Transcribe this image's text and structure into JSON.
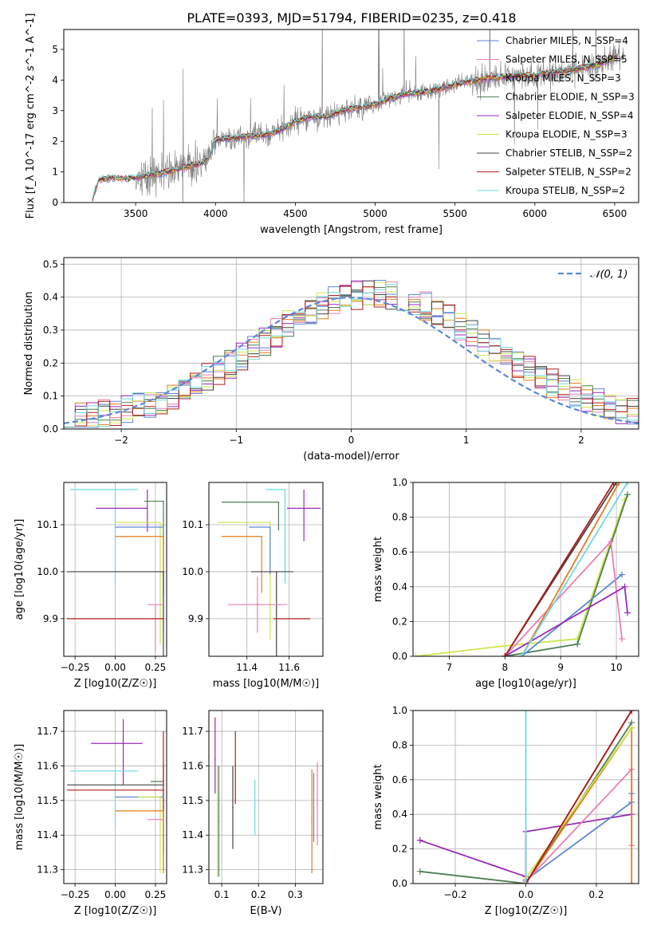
{
  "title": "PLATE=0393, MJD=51794, FIBERID=0235, z=0.418",
  "legend_labels": {
    "spectrum": [
      "Chabrier MILES, N_SSP=4",
      "Salpeter MILES, N_SSP=5",
      "Kroupa MILES, N_SSP=3",
      "Chabrier ELODIE, N_SSP=3",
      "Salpeter ELODIE, N_SSP=4",
      "Kroupa ELODIE, N_SSP=3",
      "Chabrier STELIB, N_SSP=2",
      "Salpeter STELIB, N_SSP=2",
      "Kroupa STELIB, N_SSP=2"
    ],
    "hist": [
      "𝒩(0, 1)"
    ]
  },
  "colors": {
    "Chabrier MILES": "#5b87d6",
    "Salpeter MILES": "#e87fb4",
    "Kroupa MILES": "#e57c1f",
    "Chabrier ELODIE": "#4e7e52",
    "Salpeter ELODIE": "#9a2ab8",
    "Kroupa ELODIE": "#cde54a",
    "Chabrier STELIB": "#444444",
    "Salpeter STELIB": "#b31b1b",
    "Kroupa STELIB": "#6fd8dc",
    "data": "#7f7f7f",
    "normal": "#5b87d6"
  },
  "chart_data": [
    {
      "id": "spectrum",
      "type": "line",
      "xlabel": "wavelength [Angstrom, rest frame]",
      "ylabel": "Flux [f_λ 10^-17 erg cm^-2 s^-1 A^-1]",
      "xlim": [
        3050,
        6650
      ],
      "ylim": [
        0,
        5.65
      ],
      "xticks": [
        3500,
        4000,
        4500,
        5000,
        5500,
        6000,
        6500
      ],
      "yticks": [
        0,
        1,
        2,
        3,
        4,
        5
      ],
      "continuum": {
        "x": [
          3220,
          3270,
          3350,
          3450,
          3520,
          3600,
          3700,
          3800,
          3900,
          3950,
          4000,
          4100,
          4200,
          4300,
          4400,
          4500,
          4600,
          4700,
          4800,
          4900,
          5000,
          5100,
          5200,
          5300,
          5400,
          5500,
          5600,
          5700,
          5800,
          5900,
          6000,
          6100,
          6200,
          6300,
          6400,
          6500
        ],
        "y": [
          0,
          0.75,
          0.8,
          0.78,
          0.82,
          0.9,
          1.0,
          1.15,
          1.25,
          1.4,
          2.05,
          2.1,
          2.15,
          2.2,
          2.35,
          2.65,
          2.8,
          2.8,
          3.0,
          3.1,
          3.2,
          3.4,
          3.55,
          3.6,
          3.7,
          3.85,
          3.95,
          4.05,
          4.1,
          4.15,
          4.15,
          4.25,
          4.3,
          4.4,
          4.5,
          4.75
        ]
      },
      "series": [
        "Chabrier MILES",
        "Salpeter MILES",
        "Kroupa MILES",
        "Chabrier ELODIE",
        "Salpeter ELODIE",
        "Kroupa ELODIE",
        "Chabrier STELIB",
        "Salpeter STELIB",
        "Kroupa STELIB"
      ]
    },
    {
      "id": "hist",
      "type": "line",
      "xlabel": "(data-model)/error",
      "ylabel": "Normed distribution",
      "xlim": [
        -2.5,
        2.5
      ],
      "ylim": [
        0,
        0.52
      ],
      "xticks": [
        -2,
        -1,
        0,
        1,
        2
      ],
      "yticks": [
        0.0,
        0.1,
        0.2,
        0.3,
        0.4,
        0.5
      ],
      "grid": true,
      "legend": "top-right",
      "bin_edges_range": [
        -2.5,
        2.5
      ],
      "bins": 50
    },
    {
      "id": "age_vs_Z",
      "type": "scatter",
      "xlabel": "Z [log10(Z/Z☉)]",
      "ylabel": "age [log10(age/yr)]",
      "xlim": [
        -0.32,
        0.32
      ],
      "ylim": [
        9.82,
        10.19
      ],
      "xticks": [
        -0.25,
        0.0,
        0.25
      ],
      "yticks": [
        9.9,
        10.0,
        10.1
      ],
      "points": [
        {
          "series": "Kroupa STELIB",
          "x": 0.0,
          "y": 10.175,
          "xerr": [
            0.28,
            0.14
          ],
          "yerr": [
            0.2,
            0.0
          ]
        },
        {
          "series": "Salpeter ELODIE",
          "x": 0.2,
          "y": 10.135,
          "xerr": [
            0.32,
            0.0
          ],
          "yerr": [
            0.05,
            0.04
          ]
        },
        {
          "series": "Chabrier ELODIE",
          "x": 0.3,
          "y": 10.15,
          "xerr": [
            0.12,
            0.0
          ],
          "yerr": [
            0.2,
            0.0
          ]
        },
        {
          "series": "Kroupa ELODIE",
          "x": 0.28,
          "y": 10.105,
          "xerr": [
            0.28,
            0.0
          ],
          "yerr": [
            0.26,
            0.0
          ]
        },
        {
          "series": "Chabrier MILES",
          "x": 0.3,
          "y": 10.095,
          "xerr": [
            0.3,
            0.0
          ],
          "yerr": [
            0.1,
            0.0
          ]
        },
        {
          "series": "Kroupa MILES",
          "x": 0.3,
          "y": 10.075,
          "xerr": [
            0.3,
            0.0
          ],
          "yerr": [
            0.2,
            0.0
          ]
        },
        {
          "series": "Chabrier STELIB",
          "x": 0.3,
          "y": 10.0,
          "xerr": [
            0.6,
            0.0
          ],
          "yerr": [
            0.2,
            0.0
          ]
        },
        {
          "series": "Salpeter MILES",
          "x": 0.25,
          "y": 9.93,
          "xerr": [
            0.05,
            0.05
          ],
          "yerr": [
            0.1,
            0.0
          ]
        },
        {
          "series": "Salpeter STELIB",
          "x": 0.3,
          "y": 9.9,
          "xerr": [
            0.6,
            0.0
          ],
          "yerr": [
            0.0,
            0.0
          ]
        }
      ]
    },
    {
      "id": "age_vs_mass",
      "type": "scatter",
      "xlabel": "mass [log10(M/M☉)]",
      "ylabel": "",
      "xlim": [
        11.22,
        11.76
      ],
      "ylim": [
        9.82,
        10.19
      ],
      "xticks": [
        11.4,
        11.6
      ],
      "yticks": [
        9.9,
        10.0,
        10.1
      ],
      "points": [
        {
          "series": "Kroupa STELIB",
          "x": 11.58,
          "y": 10.175,
          "xerr": [
            0.09,
            0.0
          ],
          "yerr": [
            0.2,
            0.0
          ]
        },
        {
          "series": "Chabrier ELODIE",
          "x": 11.55,
          "y": 10.148,
          "xerr": [
            0.27,
            0.0
          ],
          "yerr": [
            0.06,
            0.0
          ]
        },
        {
          "series": "Salpeter ELODIE",
          "x": 11.67,
          "y": 10.135,
          "xerr": [
            0.08,
            0.08
          ],
          "yerr": [
            0.07,
            0.04
          ]
        },
        {
          "series": "Kroupa ELODIE",
          "x": 11.51,
          "y": 10.105,
          "xerr": [
            0.25,
            0.0
          ],
          "yerr": [
            0.25,
            0.0
          ]
        },
        {
          "series": "Chabrier MILES",
          "x": 11.51,
          "y": 10.095,
          "xerr": [
            0.1,
            0.0
          ],
          "yerr": [
            0.1,
            0.0
          ]
        },
        {
          "series": "Kroupa MILES",
          "x": 11.47,
          "y": 10.075,
          "xerr": [
            0.19,
            0.0
          ],
          "yerr": [
            0.12,
            0.0
          ]
        },
        {
          "series": "Chabrier STELIB",
          "x": 11.54,
          "y": 10.0,
          "xerr": [
            0.12,
            0.08
          ],
          "yerr": [
            0.2,
            0.0
          ]
        },
        {
          "series": "Salpeter MILES",
          "x": 11.45,
          "y": 9.93,
          "xerr": [
            0.14,
            0.14
          ],
          "yerr": [
            0.06,
            0.06
          ]
        },
        {
          "series": "Salpeter STELIB",
          "x": 11.53,
          "y": 9.9,
          "xerr": [
            0.0,
            0.17
          ],
          "yerr": [
            0.0,
            0.0
          ]
        }
      ]
    },
    {
      "id": "weight_vs_age",
      "type": "line",
      "xlabel": "age [log10(age/yr)]",
      "ylabel": "mass weight",
      "xlim": [
        6.35,
        10.4
      ],
      "ylim": [
        0,
        1.0
      ],
      "xticks": [
        7,
        8,
        9,
        10
      ],
      "yticks": [
        0.0,
        0.2,
        0.4,
        0.6,
        0.8,
        1.0
      ],
      "series_lines": [
        {
          "series": "Kroupa ELODIE",
          "x": [
            6.4,
            8.0,
            9.3,
            10.15
          ],
          "y": [
            0.0,
            0.06,
            0.1,
            0.9
          ]
        },
        {
          "series": "Chabrier ELODIE",
          "x": [
            8.0,
            9.3,
            10.2
          ],
          "y": [
            0.0,
            0.07,
            0.93
          ]
        },
        {
          "series": "Chabrier MILES",
          "x": [
            8.3,
            10.1
          ],
          "y": [
            0.0,
            0.47
          ]
        },
        {
          "series": "Salpeter MILES",
          "x": [
            8.0,
            9.9,
            10.1
          ],
          "y": [
            0.0,
            0.66,
            0.1
          ]
        },
        {
          "series": "Salpeter ELODIE",
          "x": [
            8.0,
            10.15,
            10.2
          ],
          "y": [
            0.0,
            0.4,
            0.25
          ]
        },
        {
          "series": "Kroupa MILES",
          "x": [
            8.3,
            10.05
          ],
          "y": [
            0.0,
            1.0
          ]
        },
        {
          "series": "Chabrier STELIB",
          "x": [
            8.0,
            10.0
          ],
          "y": [
            0.0,
            1.0
          ]
        },
        {
          "series": "Salpeter STELIB",
          "x": [
            8.0,
            9.95
          ],
          "y": [
            0.0,
            1.0
          ]
        },
        {
          "series": "Kroupa STELIB",
          "x": [
            8.3,
            10.2
          ],
          "y": [
            0.0,
            1.0
          ]
        }
      ]
    },
    {
      "id": "mass_vs_Z",
      "type": "scatter",
      "xlabel": "Z [log10(Z/Z☉)]",
      "ylabel": "mass [log10(M/M☉)]",
      "xlim": [
        -0.32,
        0.32
      ],
      "ylim": [
        11.26,
        11.76
      ],
      "xticks": [
        -0.25,
        0.0,
        0.25
      ],
      "yticks": [
        11.3,
        11.4,
        11.5,
        11.6,
        11.7
      ],
      "points": [
        {
          "series": "Salpeter ELODIE",
          "x": 0.05,
          "y": 11.665,
          "xerr": [
            0.2,
            0.12
          ],
          "yerr": [
            0.12,
            0.07
          ]
        },
        {
          "series": "Kroupa STELIB",
          "x": 0.0,
          "y": 11.585,
          "xerr": [
            0.28,
            0.14
          ],
          "yerr": [
            0.16,
            0.0
          ]
        },
        {
          "series": "Chabrier ELODIE",
          "x": 0.3,
          "y": 11.555,
          "xerr": [
            0.08,
            0.0
          ],
          "yerr": [
            0.21,
            0.05
          ]
        },
        {
          "series": "Chabrier STELIB",
          "x": 0.3,
          "y": 11.545,
          "xerr": [
            0.6,
            0.0
          ],
          "yerr": [
            0.0,
            0.0
          ]
        },
        {
          "series": "Salpeter STELIB",
          "x": 0.3,
          "y": 11.53,
          "xerr": [
            0.6,
            0.0
          ],
          "yerr": [
            0.23,
            0.17
          ]
        },
        {
          "series": "Chabrier MILES",
          "x": 0.3,
          "y": 11.51,
          "xerr": [
            0.3,
            0.0
          ],
          "yerr": [
            0.0,
            0.0
          ]
        },
        {
          "series": "Kroupa ELODIE",
          "x": 0.28,
          "y": 11.51,
          "xerr": [
            0.14,
            0.0
          ],
          "yerr": [
            0.22,
            0.0
          ]
        },
        {
          "series": "Kroupa MILES",
          "x": 0.3,
          "y": 11.47,
          "xerr": [
            0.3,
            0.0
          ],
          "yerr": [
            0.18,
            0.0
          ]
        },
        {
          "series": "Salpeter MILES",
          "x": 0.3,
          "y": 11.445,
          "xerr": [
            0.1,
            0.0
          ],
          "yerr": [
            0.0,
            0.0
          ]
        }
      ]
    },
    {
      "id": "mass_vs_ebv",
      "type": "scatter",
      "xlabel": "E(B-V)",
      "ylabel": "",
      "xlim": [
        0.065,
        0.375
      ],
      "ylim": [
        11.26,
        11.76
      ],
      "xticks": [
        0.1,
        0.2,
        0.3
      ],
      "yticks": [
        11.3,
        11.4,
        11.5,
        11.6,
        11.7
      ],
      "points": [
        {
          "series": "Salpeter ELODIE",
          "x": 0.082,
          "y": 11.62,
          "yerr": [
            0.1,
            0.12
          ]
        },
        {
          "series": "Kroupa ELODIE",
          "x": 0.088,
          "y": 11.44,
          "yerr": [
            0.16,
            0.16
          ]
        },
        {
          "series": "Chabrier ELODIE",
          "x": 0.092,
          "y": 11.44,
          "yerr": [
            0.16,
            0.16
          ]
        },
        {
          "series": "Chabrier STELIB",
          "x": 0.13,
          "y": 11.48,
          "yerr": [
            0.12,
            0.12
          ]
        },
        {
          "series": "Salpeter STELIB",
          "x": 0.137,
          "y": 11.6,
          "yerr": [
            0.11,
            0.1
          ]
        },
        {
          "series": "Kroupa STELIB",
          "x": 0.19,
          "y": 11.48,
          "yerr": [
            0.08,
            0.08
          ]
        },
        {
          "series": "Kroupa MILES",
          "x": 0.345,
          "y": 11.44,
          "yerr": [
            0.15,
            0.15
          ]
        },
        {
          "series": "Chabrier MILES",
          "x": 0.35,
          "y": 11.48,
          "yerr": [
            0.1,
            0.1
          ]
        },
        {
          "series": "Salpeter MILES",
          "x": 0.36,
          "y": 11.49,
          "yerr": [
            0.12,
            0.12
          ]
        }
      ]
    },
    {
      "id": "weight_vs_Z",
      "type": "line",
      "xlabel": "Z [log10(Z/Z☉)]",
      "ylabel": "mass weight",
      "xlim": [
        -0.32,
        0.32
      ],
      "ylim": [
        0,
        1.0
      ],
      "xticks": [
        -0.2,
        0.0,
        0.2
      ],
      "yticks": [
        0.0,
        0.2,
        0.4,
        0.6,
        0.8,
        1.0
      ],
      "series_lines": [
        {
          "series": "Chabrier ELODIE",
          "x": [
            -0.3,
            0.0,
            0.3
          ],
          "y": [
            0.07,
            0.0,
            0.93
          ]
        },
        {
          "series": "Salpeter ELODIE",
          "x": [
            -0.3,
            0.0,
            0.0,
            0.3
          ],
          "y": [
            0.25,
            0.04,
            0.3,
            0.4
          ]
        },
        {
          "series": "Chabrier MILES",
          "x": [
            0.0,
            0.3,
            0.3
          ],
          "y": [
            0.02,
            0.47,
            0.52
          ]
        },
        {
          "series": "Salpeter MILES",
          "x": [
            0.0,
            0.3,
            0.3
          ],
          "y": [
            0.01,
            0.66,
            0.22
          ]
        },
        {
          "series": "Kroupa MILES",
          "x": [
            0.0,
            0.3,
            0.3
          ],
          "y": [
            0.0,
            0.9,
            0.0
          ]
        },
        {
          "series": "Kroupa ELODIE",
          "x": [
            0.0,
            0.3
          ],
          "y": [
            0.03,
            0.9
          ]
        },
        {
          "series": "Chabrier STELIB",
          "x": [
            0.0,
            0.3
          ],
          "y": [
            0.0,
            1.0
          ]
        },
        {
          "series": "Salpeter STELIB",
          "x": [
            0.0,
            0.3
          ],
          "y": [
            0.0,
            1.0
          ]
        },
        {
          "series": "Kroupa STELIB",
          "x": [
            0.0,
            0.0
          ],
          "y": [
            0.0,
            1.0
          ]
        }
      ]
    }
  ]
}
